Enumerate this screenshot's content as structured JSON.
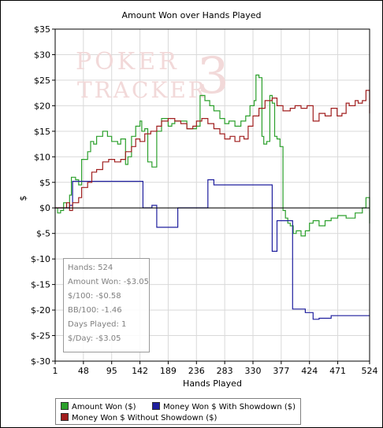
{
  "chart_data": {
    "type": "line",
    "title": "Amount Won over Hands Played",
    "xlabel": "Hands Played",
    "ylabel": "$",
    "xlim": [
      1,
      524
    ],
    "ylim": [
      -30,
      35
    ],
    "x_ticks": [
      1,
      48,
      95,
      142,
      189,
      236,
      283,
      330,
      377,
      424,
      471,
      524
    ],
    "x_tick_labels": [
      "1",
      "48",
      "95",
      "142",
      "189",
      "236",
      "283",
      "330",
      "377",
      "424",
      "471",
      "524"
    ],
    "y_ticks": [
      35,
      30,
      25,
      20,
      15,
      10,
      5,
      0,
      -5,
      -10,
      -15,
      -20,
      -25,
      -30
    ],
    "y_tick_labels": [
      "$35",
      "$30",
      "$25",
      "$20",
      "$15",
      "$10",
      "$5",
      "$0",
      "$-5",
      "$-10",
      "$-15",
      "$-20",
      "$-25",
      "$-30"
    ],
    "grid": true,
    "legend_position": "bottom",
    "series": [
      {
        "name": "Amount Won ($)",
        "color": "#2ca02c",
        "points": [
          [
            1,
            0
          ],
          [
            5,
            -1
          ],
          [
            10,
            -0.5
          ],
          [
            15,
            1
          ],
          [
            20,
            0
          ],
          [
            25,
            2.5
          ],
          [
            28,
            6
          ],
          [
            35,
            5.5
          ],
          [
            40,
            4.5
          ],
          [
            45,
            9.5
          ],
          [
            55,
            11
          ],
          [
            60,
            13
          ],
          [
            65,
            12.5
          ],
          [
            70,
            14
          ],
          [
            80,
            15
          ],
          [
            88,
            14
          ],
          [
            95,
            13
          ],
          [
            105,
            12.5
          ],
          [
            110,
            13.5
          ],
          [
            118,
            8.5
          ],
          [
            122,
            10
          ],
          [
            128,
            14
          ],
          [
            135,
            16
          ],
          [
            142,
            17
          ],
          [
            145,
            15
          ],
          [
            150,
            15.5
          ],
          [
            155,
            9
          ],
          [
            162,
            8
          ],
          [
            170,
            15
          ],
          [
            178,
            17.5
          ],
          [
            189,
            16
          ],
          [
            195,
            16.5
          ],
          [
            200,
            17
          ],
          [
            210,
            17
          ],
          [
            220,
            15.5
          ],
          [
            236,
            16
          ],
          [
            242,
            22
          ],
          [
            250,
            21
          ],
          [
            258,
            20
          ],
          [
            265,
            19
          ],
          [
            275,
            17.5
          ],
          [
            283,
            16.5
          ],
          [
            290,
            17
          ],
          [
            300,
            16
          ],
          [
            310,
            17
          ],
          [
            318,
            18
          ],
          [
            325,
            20
          ],
          [
            332,
            21
          ],
          [
            335,
            26
          ],
          [
            340,
            25.5
          ],
          [
            345,
            14
          ],
          [
            348,
            12.5
          ],
          [
            353,
            13
          ],
          [
            358,
            22
          ],
          [
            362,
            20.5
          ],
          [
            366,
            14
          ],
          [
            370,
            13.5
          ],
          [
            375,
            12
          ],
          [
            380,
            -0.5
          ],
          [
            384,
            -2
          ],
          [
            388,
            -3
          ],
          [
            392,
            -3.5
          ],
          [
            397,
            -5
          ],
          [
            402,
            -4.5
          ],
          [
            410,
            -5.5
          ],
          [
            417,
            -4.5
          ],
          [
            424,
            -3
          ],
          [
            430,
            -2.5
          ],
          [
            440,
            -3.5
          ],
          [
            450,
            -2.5
          ],
          [
            460,
            -2
          ],
          [
            471,
            -1.5
          ],
          [
            485,
            -2
          ],
          [
            500,
            -1
          ],
          [
            512,
            0
          ],
          [
            518,
            2
          ],
          [
            524,
            -3.05
          ]
        ]
      },
      {
        "name": "Money Won $ With Showdown ($)",
        "color": "#1f1f9e",
        "points": [
          [
            1,
            0
          ],
          [
            20,
            0
          ],
          [
            25,
            0.5
          ],
          [
            30,
            5.2
          ],
          [
            95,
            5.2
          ],
          [
            142,
            5.2
          ],
          [
            147,
            0
          ],
          [
            158,
            0
          ],
          [
            162,
            0.5
          ],
          [
            170,
            -3.8
          ],
          [
            200,
            -3.8
          ],
          [
            205,
            0
          ],
          [
            250,
            0
          ],
          [
            255,
            5.5
          ],
          [
            265,
            4.5
          ],
          [
            330,
            4.5
          ],
          [
            358,
            4.5
          ],
          [
            362,
            -8.5
          ],
          [
            366,
            -8.5
          ],
          [
            370,
            -2.5
          ],
          [
            392,
            -2.5
          ],
          [
            396,
            -19.8
          ],
          [
            417,
            -20.5
          ],
          [
            430,
            -21.8
          ],
          [
            440,
            -21.6
          ],
          [
            460,
            -21.1
          ],
          [
            480,
            -21.1
          ],
          [
            524,
            -21.1
          ]
        ]
      },
      {
        "name": "Money Won $ Without Showdown ($)",
        "color": "#a01e1e",
        "points": [
          [
            1,
            0
          ],
          [
            15,
            0
          ],
          [
            20,
            1
          ],
          [
            25,
            -0.5
          ],
          [
            30,
            1
          ],
          [
            40,
            2
          ],
          [
            45,
            4
          ],
          [
            55,
            5
          ],
          [
            62,
            7
          ],
          [
            70,
            7.5
          ],
          [
            80,
            9
          ],
          [
            90,
            9.5
          ],
          [
            100,
            9
          ],
          [
            110,
            9.5
          ],
          [
            118,
            11
          ],
          [
            128,
            12
          ],
          [
            135,
            13.5
          ],
          [
            142,
            13
          ],
          [
            150,
            14.5
          ],
          [
            160,
            15
          ],
          [
            170,
            16
          ],
          [
            178,
            17
          ],
          [
            189,
            17.5
          ],
          [
            200,
            17
          ],
          [
            210,
            16.5
          ],
          [
            220,
            15.5
          ],
          [
            230,
            16
          ],
          [
            236,
            17
          ],
          [
            245,
            17.5
          ],
          [
            255,
            16.5
          ],
          [
            265,
            15.5
          ],
          [
            275,
            14.5
          ],
          [
            283,
            13.5
          ],
          [
            292,
            14
          ],
          [
            300,
            13
          ],
          [
            308,
            14
          ],
          [
            315,
            13.5
          ],
          [
            322,
            16
          ],
          [
            330,
            18
          ],
          [
            340,
            19.5
          ],
          [
            350,
            21
          ],
          [
            362,
            21.5
          ],
          [
            370,
            20
          ],
          [
            380,
            19
          ],
          [
            392,
            19.5
          ],
          [
            400,
            20
          ],
          [
            410,
            19.5
          ],
          [
            420,
            20
          ],
          [
            430,
            17
          ],
          [
            440,
            18.5
          ],
          [
            450,
            18
          ],
          [
            460,
            19.5
          ],
          [
            470,
            18
          ],
          [
            478,
            18.5
          ],
          [
            485,
            20.5
          ],
          [
            490,
            20
          ],
          [
            500,
            21
          ],
          [
            505,
            20.5
          ],
          [
            512,
            21
          ],
          [
            518,
            23
          ],
          [
            524,
            18.5
          ]
        ]
      }
    ],
    "stats": {
      "hands": "Hands: 524",
      "amount_won": "Amount Won: -$3.05",
      "per_100": "$/100: -$0.58",
      "bb_per_100": "BB/100: -1.46",
      "days_played": "Days Played: 1",
      "per_day": "$/Day: -$3.05"
    },
    "watermark": {
      "line1": "POKER",
      "line2": "TRACKER",
      "numeral": "3"
    },
    "colors": {
      "grid": "#d9d9d9",
      "axis": "#000000",
      "zero_line": "#000000",
      "watermark": "#f2d9d9"
    }
  }
}
